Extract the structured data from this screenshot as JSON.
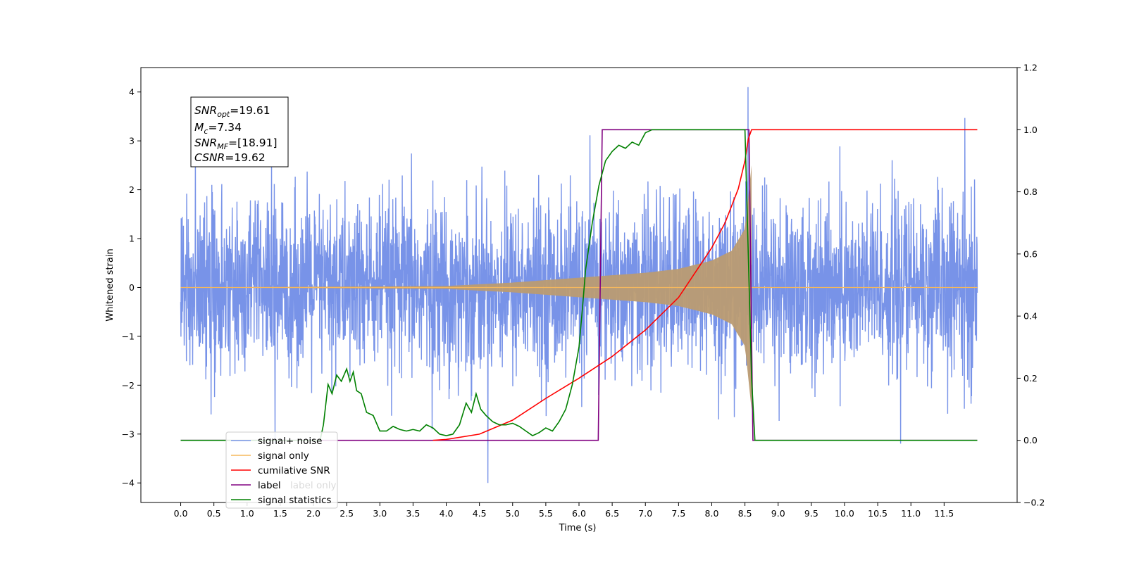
{
  "chart_data": {
    "type": "line",
    "xlabel": "Time (s)",
    "ylabel": "Whitened strain",
    "xlim": [
      -0.6,
      12.6
    ],
    "ylim": [
      -4.4,
      4.5
    ],
    "y2lim": [
      -0.2,
      1.2
    ],
    "x_ticks": [
      "0.0",
      "0.5",
      "1.0",
      "1.5",
      "2.0",
      "2.5",
      "3.0",
      "3.5",
      "4.0",
      "4.5",
      "5.0",
      "5.5",
      "6.0",
      "6.5",
      "7.0",
      "7.5",
      "8.0",
      "8.5",
      "9.0",
      "9.5",
      "10.0",
      "10.5",
      "11.0",
      "11.5"
    ],
    "y_ticks": [
      "4",
      "3",
      "2",
      "1",
      "0",
      "−1",
      "−2",
      "−3",
      "−4"
    ],
    "y2_ticks": [
      "1.2",
      "1.0",
      "0.8",
      "0.6",
      "0.4",
      "0.2",
      "0.0",
      "−0.2"
    ],
    "grid": false,
    "legend_position": "lower-left",
    "stats_box": {
      "snr_opt": "=19.61",
      "mc": "=7.34",
      "snr_mf": "=[18.91]",
      "csnr": "=19.62"
    },
    "series": [
      {
        "name": "signal+ noise",
        "color": "#7893e8",
        "axis": "left",
        "description_values": {
          "x_start": 0.0,
          "x_end": 12.0,
          "noise_std": 0.95,
          "max_peak": 4.1,
          "min_peak": -4.0
        }
      },
      {
        "name": "signal only",
        "color": "#f5b85c",
        "axis": "left",
        "envelope": {
          "x": [
            0.0,
            4.0,
            5.0,
            6.0,
            7.0,
            7.5,
            8.0,
            8.3,
            8.5,
            8.6
          ],
          "amp": [
            0.0,
            0.03,
            0.1,
            0.2,
            0.3,
            0.38,
            0.55,
            0.75,
            1.2,
            2.5
          ]
        }
      },
      {
        "name": "cumilative SNR",
        "color": "#ff0000",
        "axis": "right",
        "x": [
          3.8,
          4.0,
          4.5,
          5.0,
          5.5,
          6.0,
          6.5,
          7.0,
          7.5,
          8.0,
          8.2,
          8.4,
          8.5,
          8.55,
          8.6,
          12.0
        ],
        "y": [
          0.0,
          0.003,
          0.02,
          0.065,
          0.135,
          0.2,
          0.27,
          0.355,
          0.46,
          0.62,
          0.7,
          0.81,
          0.9,
          0.97,
          1.0,
          1.0
        ]
      },
      {
        "name": "label",
        "color": "#800080",
        "axis": "right",
        "x": [
          0.0,
          6.29,
          6.35,
          8.56,
          8.62,
          12.0
        ],
        "y": [
          0.0,
          0.0,
          1.0,
          1.0,
          0.0,
          0.0
        ]
      },
      {
        "name": "label only",
        "legend_hidden": true,
        "axis": "right",
        "color": "#800080"
      },
      {
        "name": "signal statistics",
        "color": "#008000",
        "axis": "right",
        "x": [
          0.0,
          2.1,
          2.15,
          2.22,
          2.28,
          2.35,
          2.42,
          2.5,
          2.55,
          2.6,
          2.65,
          2.72,
          2.8,
          2.9,
          3.0,
          3.1,
          3.2,
          3.3,
          3.4,
          3.5,
          3.6,
          3.7,
          3.8,
          3.9,
          4.0,
          4.1,
          4.2,
          4.3,
          4.38,
          4.45,
          4.52,
          4.6,
          4.7,
          4.8,
          4.9,
          5.0,
          5.1,
          5.2,
          5.3,
          5.4,
          5.5,
          5.6,
          5.7,
          5.8,
          5.9,
          6.0,
          6.05,
          6.1,
          6.2,
          6.3,
          6.4,
          6.5,
          6.6,
          6.7,
          6.8,
          6.9,
          7.0,
          7.1,
          7.2,
          7.3,
          7.5,
          8.0,
          8.5,
          8.55,
          8.6,
          8.65,
          12.0
        ],
        "y": [
          0.0,
          0.0,
          0.05,
          0.18,
          0.15,
          0.21,
          0.19,
          0.23,
          0.19,
          0.22,
          0.16,
          0.15,
          0.09,
          0.08,
          0.03,
          0.03,
          0.045,
          0.035,
          0.03,
          0.035,
          0.03,
          0.05,
          0.04,
          0.02,
          0.015,
          0.02,
          0.05,
          0.12,
          0.09,
          0.15,
          0.1,
          0.08,
          0.06,
          0.05,
          0.05,
          0.055,
          0.045,
          0.03,
          0.015,
          0.025,
          0.04,
          0.03,
          0.06,
          0.1,
          0.18,
          0.3,
          0.42,
          0.55,
          0.7,
          0.82,
          0.9,
          0.93,
          0.95,
          0.94,
          0.96,
          0.95,
          0.99,
          1.0,
          1.0,
          1.0,
          1.0,
          1.0,
          1.0,
          0.6,
          0.2,
          0.0,
          0.0
        ]
      }
    ]
  }
}
